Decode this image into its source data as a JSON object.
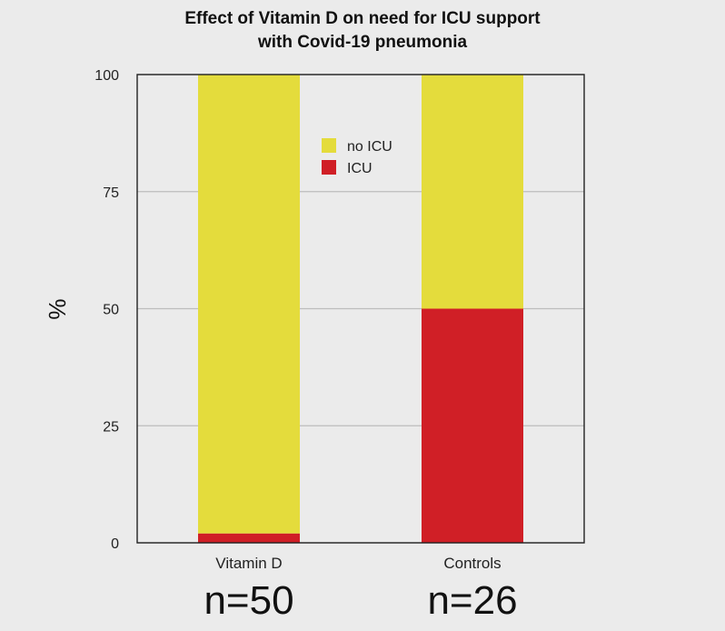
{
  "chart_data": {
    "type": "bar",
    "stacked": true,
    "title_line1": "Effect of Vitamin D on need for ICU support",
    "title_line2": "with Covid-19 pneumonia",
    "ylabel": "%",
    "ylim": [
      0,
      100
    ],
    "yticks": [
      "0",
      "25",
      "50",
      "75",
      "100"
    ],
    "grid": true,
    "legend_position": "top-center",
    "categories": [
      "Vitamin D",
      "Controls"
    ],
    "sample_sizes": [
      "n=50",
      "n=26"
    ],
    "series": [
      {
        "name": "ICU",
        "color": "#d01f26",
        "values": [
          2,
          50
        ]
      },
      {
        "name": "no ICU",
        "color": "#e4dc3c",
        "values": [
          98,
          50
        ]
      }
    ],
    "legend": [
      {
        "name": "no ICU",
        "color": "#e4dc3c"
      },
      {
        "name": "ICU",
        "color": "#d01f26"
      }
    ]
  }
}
